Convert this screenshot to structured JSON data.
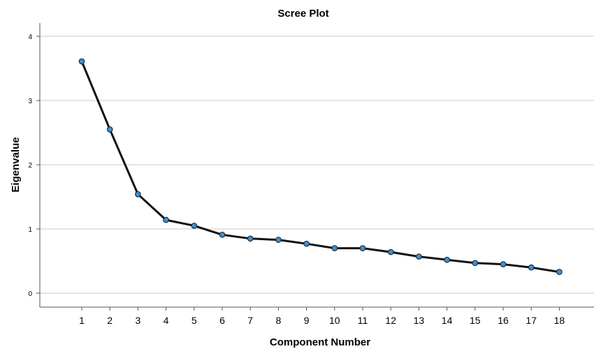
{
  "chart_data": {
    "type": "line",
    "title": "Scree Plot",
    "xlabel": "Component Number",
    "ylabel": "Eigenvalue",
    "x": [
      1,
      2,
      3,
      4,
      5,
      6,
      7,
      8,
      9,
      10,
      11,
      12,
      13,
      14,
      15,
      16,
      17,
      18
    ],
    "series": [
      {
        "values": [
          3.61,
          2.55,
          1.54,
          1.14,
          1.05,
          0.91,
          0.85,
          0.83,
          0.77,
          0.7,
          0.7,
          0.64,
          0.57,
          0.52,
          0.47,
          0.45,
          0.4,
          0.33
        ]
      }
    ],
    "ylim": [
      0,
      4.25
    ],
    "yticks": [
      0,
      1,
      2,
      3,
      4
    ],
    "grid": true,
    "legend": "none",
    "colors": {
      "line": "#111111",
      "marker": "#3a8fd6",
      "grid": "#c8c8c8"
    }
  }
}
